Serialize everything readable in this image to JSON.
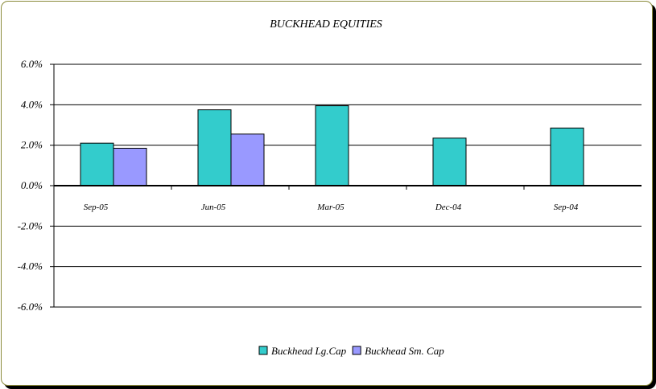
{
  "chart_data": {
    "type": "bar",
    "title": "BUCKHEAD EQUITIES",
    "xlabel": "",
    "ylabel": "",
    "categories": [
      "Sep-05",
      "Jun-05",
      "Mar-05",
      "Dec-04",
      "Sep-04"
    ],
    "series": [
      {
        "name": "Buckhead Lg.Cap",
        "color": "#33cccc",
        "values": [
          2.1,
          3.75,
          3.95,
          2.35,
          2.85
        ]
      },
      {
        "name": "Buckhead Sm. Cap",
        "color": "#9999ff",
        "values": [
          1.85,
          2.55,
          null,
          null,
          null
        ]
      }
    ],
    "ylim": [
      -6.0,
      6.0
    ],
    "yticks": [
      6.0,
      4.0,
      2.0,
      0.0,
      -2.0,
      -4.0,
      -6.0
    ],
    "ytick_labels": [
      "6.0%",
      "4.0%",
      "2.0%",
      "0.0%",
      "-2.0%",
      "-4.0%",
      "-6.0%"
    ],
    "grid": true,
    "legend_position": "bottom"
  }
}
